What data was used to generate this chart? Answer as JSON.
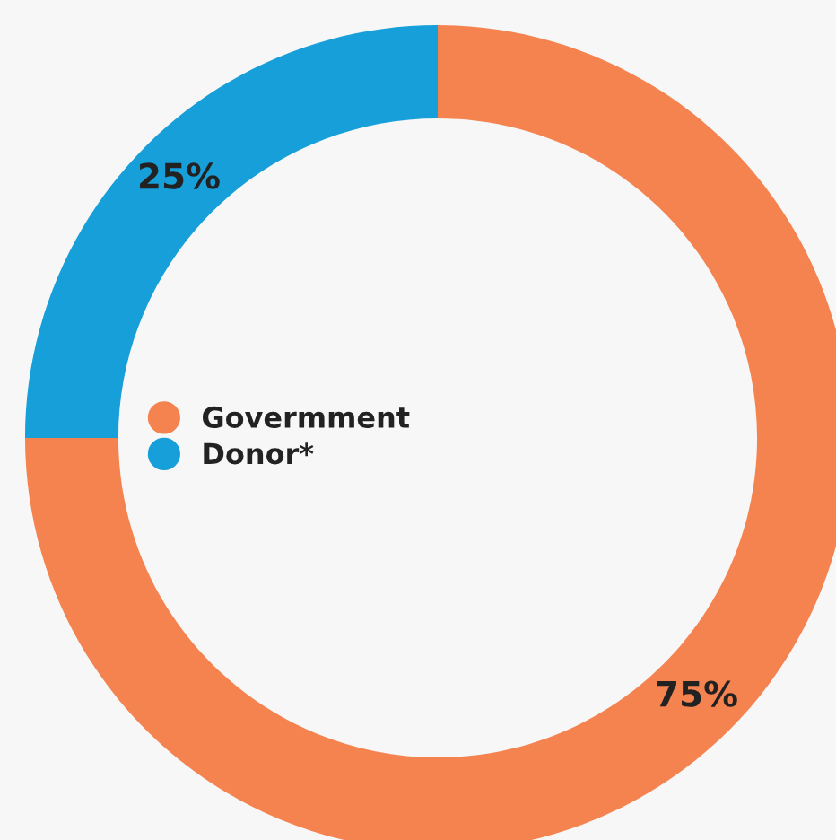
{
  "chart_data": {
    "type": "donut",
    "categories": [
      "Govermment",
      "Donor*"
    ],
    "values": [
      75,
      25
    ],
    "colors": [
      "#f5834f",
      "#179fd9"
    ],
    "value_labels": [
      "75%",
      "25%"
    ],
    "legend": "center"
  }
}
